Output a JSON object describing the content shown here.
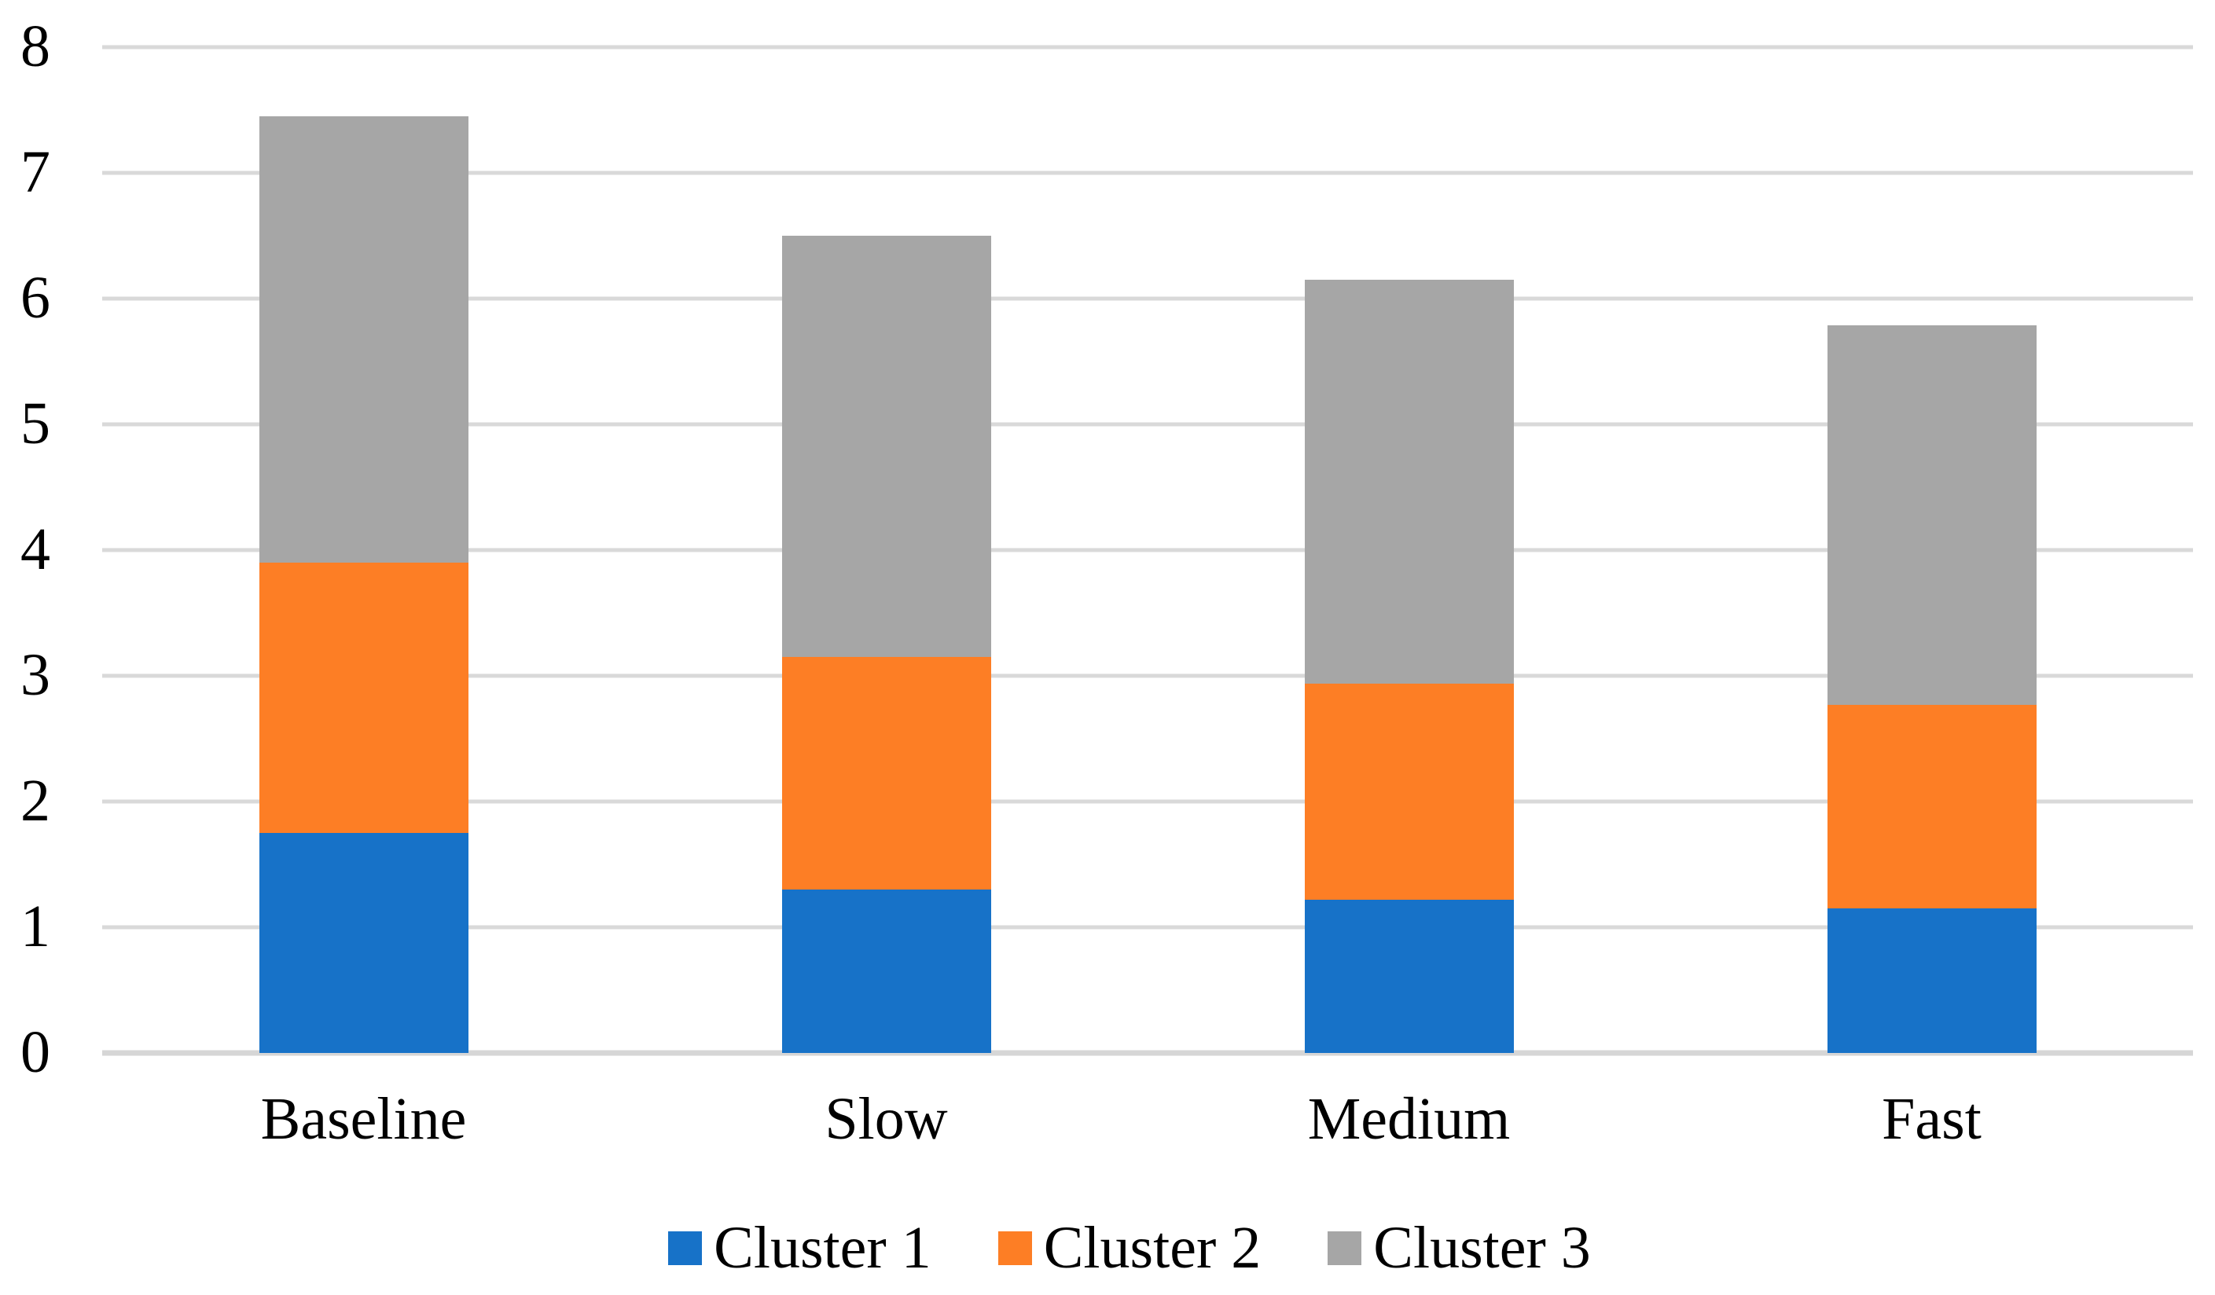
{
  "chart_data": {
    "type": "bar",
    "stacked": true,
    "title": "",
    "xlabel": "",
    "ylabel": "",
    "categories": [
      "Baseline",
      "Slow",
      "Medium",
      "Fast"
    ],
    "series": [
      {
        "name": "Cluster 1",
        "color": "#1772C8",
        "values": [
          1.75,
          1.3,
          1.22,
          1.15
        ]
      },
      {
        "name": "Cluster 2",
        "color": "#FD7E25",
        "values": [
          2.15,
          1.85,
          1.72,
          1.62
        ]
      },
      {
        "name": "Cluster 3",
        "color": "#A6A6A6",
        "values": [
          3.55,
          3.35,
          3.21,
          3.02
        ]
      }
    ],
    "stack_totals": [
      7.45,
      6.5,
      6.15,
      5.79
    ],
    "ylim": [
      0,
      8
    ],
    "y_ticks": [
      "0",
      "1",
      "2",
      "3",
      "4",
      "5",
      "6",
      "7",
      "8"
    ],
    "grid": "horizontal",
    "gridline_color": "#D9D9D9",
    "axis_line_color": "#D6D6D6",
    "text_color": "#000000",
    "background_color": "#FFFFFF",
    "legend_position": "bottom",
    "legend": [
      "Cluster 1",
      "Cluster 2",
      "Cluster 3"
    ]
  }
}
